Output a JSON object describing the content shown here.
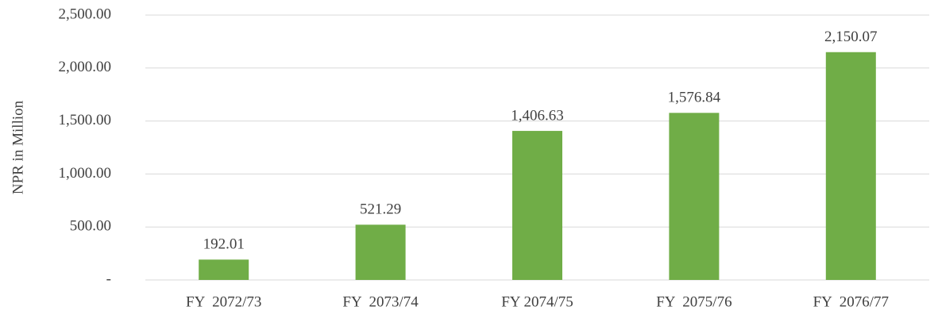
{
  "chart_data": {
    "type": "bar",
    "y_label": "NPR in Million",
    "categories": [
      "FY  2072/73",
      "FY  2073/74",
      "FY 2074/75",
      "FY  2075/76",
      "FY  2076/77"
    ],
    "values": [
      192.01,
      521.29,
      1406.63,
      1576.84,
      2150.07
    ],
    "value_labels": [
      "192.01",
      "521.29",
      "1,406.63",
      "1,576.84",
      "2,150.07"
    ],
    "color": "#70ad47",
    "ylim": [
      0,
      2500
    ],
    "yticks": [
      {
        "value": 0,
        "label": "-"
      },
      {
        "value": 500,
        "label": "500.00"
      },
      {
        "value": 1000,
        "label": "1,000.00"
      },
      {
        "value": 1500,
        "label": "1,500.00"
      },
      {
        "value": 2000,
        "label": "2,000.00"
      },
      {
        "value": 2500,
        "label": "2,500.00"
      }
    ],
    "grid": true
  }
}
